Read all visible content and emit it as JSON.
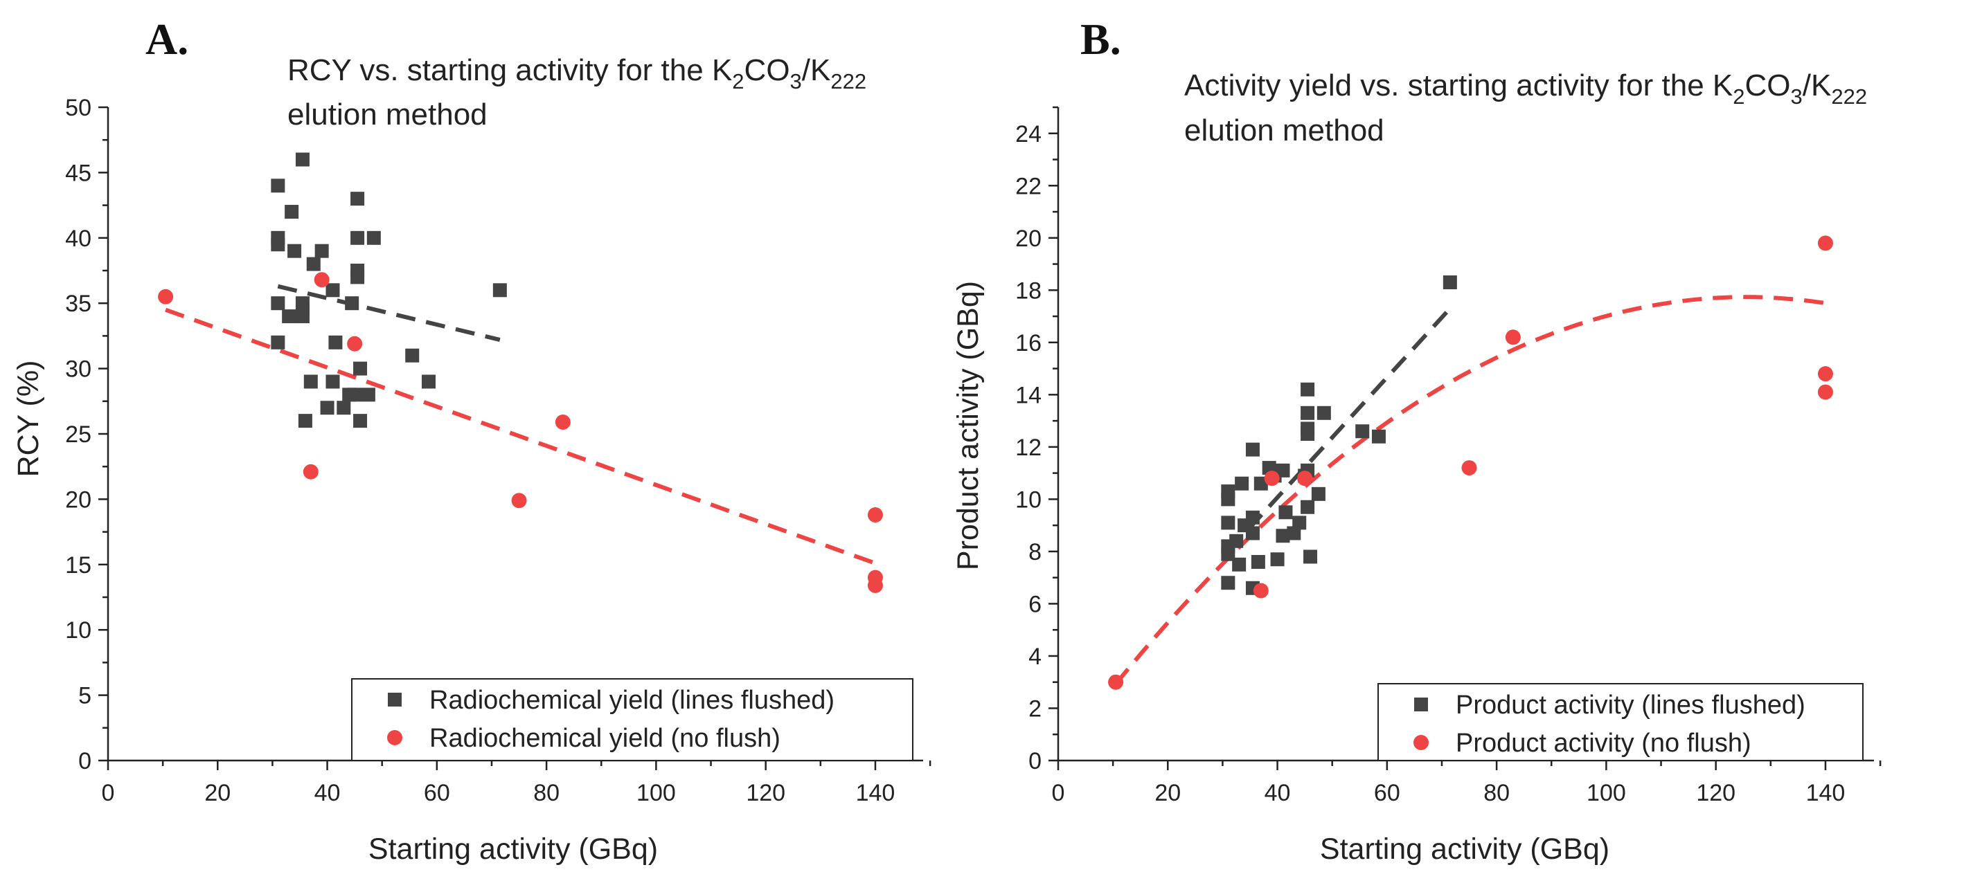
{
  "colors": {
    "flushed": "#444444",
    "noflush": "#ef4444",
    "axis": "#222222"
  },
  "chart_data": [
    {
      "panel_label": "A.",
      "type": "scatter",
      "title_parts": [
        {
          "t": "RCY vs. starting activity for the K",
          "line": 1
        },
        {
          "t": "2",
          "sub": true,
          "line": 1
        },
        {
          "t": "CO",
          "line": 1
        },
        {
          "t": "3",
          "sub": true,
          "line": 1
        },
        {
          "t": "/K",
          "line": 1
        },
        {
          "t": "222",
          "sub": true,
          "line": 1
        },
        {
          "t": "elution method",
          "line": 2
        }
      ],
      "xlabel": "Starting activity (GBq)",
      "ylabel": "RCY (%)",
      "xlim": [
        0,
        150
      ],
      "ylim": [
        0,
        50
      ],
      "xticks": [
        0,
        20,
        40,
        60,
        80,
        100,
        120,
        140
      ],
      "yticks": [
        0,
        5,
        10,
        15,
        20,
        25,
        30,
        35,
        40,
        45,
        50
      ],
      "legend_position": "bottom-right",
      "series": [
        {
          "name": "Radiochemical yield (lines flushed)",
          "marker": "square",
          "points": [
            [
              31,
              44
            ],
            [
              31,
              40
            ],
            [
              31,
              39.5
            ],
            [
              31,
              35
            ],
            [
              31,
              32
            ],
            [
              33,
              34
            ],
            [
              33.5,
              42
            ],
            [
              34,
              39
            ],
            [
              35.5,
              46
            ],
            [
              35.5,
              35
            ],
            [
              35.5,
              34.5
            ],
            [
              35.5,
              34
            ],
            [
              36,
              26
            ],
            [
              37,
              29
            ],
            [
              37.5,
              38
            ],
            [
              39,
              39
            ],
            [
              40,
              27
            ],
            [
              41,
              36
            ],
            [
              41,
              29
            ],
            [
              41.5,
              32
            ],
            [
              43,
              27
            ],
            [
              44,
              28
            ],
            [
              44.5,
              35
            ],
            [
              45,
              28
            ],
            [
              45.5,
              43
            ],
            [
              45.5,
              40
            ],
            [
              45.5,
              37.5
            ],
            [
              45.5,
              37
            ],
            [
              46,
              30
            ],
            [
              46,
              26
            ],
            [
              47.5,
              28
            ],
            [
              48.5,
              40
            ],
            [
              55.5,
              31
            ],
            [
              58.5,
              29
            ],
            [
              71.5,
              36
            ]
          ],
          "trend": {
            "kind": "linear",
            "x": [
              31,
              71.5
            ],
            "y": [
              36.3,
              32.2
            ]
          }
        },
        {
          "name": "Radiochemical yield (no flush)",
          "marker": "circle",
          "points": [
            [
              10.5,
              35.5
            ],
            [
              37,
              22.1
            ],
            [
              39,
              36.8
            ],
            [
              45,
              31.9
            ],
            [
              75,
              19.9
            ],
            [
              83,
              25.9
            ],
            [
              140,
              18.8
            ],
            [
              140,
              14
            ],
            [
              140,
              13.4
            ]
          ],
          "trend": {
            "kind": "linear",
            "x": [
              10.5,
              140
            ],
            "y": [
              34.5,
              15.1
            ]
          }
        }
      ]
    },
    {
      "panel_label": "B.",
      "type": "scatter",
      "title_parts": [
        {
          "t": "Activity yield vs. starting activity for the K",
          "line": 1
        },
        {
          "t": "2",
          "sub": true,
          "line": 1
        },
        {
          "t": "CO",
          "line": 1
        },
        {
          "t": "3",
          "sub": true,
          "line": 1
        },
        {
          "t": "/K",
          "line": 1
        },
        {
          "t": "222",
          "sub": true,
          "line": 1
        },
        {
          "t": "elution method",
          "line": 2
        }
      ],
      "xlabel": "Starting activity (GBq)",
      "ylabel": "Product activity (GBq)",
      "xlim": [
        0,
        150
      ],
      "ylim": [
        0,
        25
      ],
      "xticks": [
        0,
        20,
        40,
        60,
        80,
        100,
        120,
        140
      ],
      "yticks": [
        0,
        2,
        4,
        6,
        8,
        10,
        12,
        14,
        16,
        18,
        20,
        22,
        24
      ],
      "legend_position": "bottom-right",
      "series": [
        {
          "name": "Product activity (lines flushed)",
          "marker": "square",
          "points": [
            [
              31,
              10.3
            ],
            [
              31,
              10
            ],
            [
              31,
              9.1
            ],
            [
              31,
              8.2
            ],
            [
              31,
              7.9
            ],
            [
              31,
              6.8
            ],
            [
              32.5,
              8.4
            ],
            [
              33,
              7.5
            ],
            [
              33.5,
              10.6
            ],
            [
              34,
              9
            ],
            [
              35.5,
              11.9
            ],
            [
              35.5,
              9.3
            ],
            [
              35.5,
              8.7
            ],
            [
              35.5,
              6.6
            ],
            [
              36.5,
              7.6
            ],
            [
              37,
              10.6
            ],
            [
              38.5,
              11.2
            ],
            [
              39.5,
              10.9
            ],
            [
              40,
              7.7
            ],
            [
              41,
              11.1
            ],
            [
              41,
              8.6
            ],
            [
              41.5,
              9.5
            ],
            [
              43,
              8.7
            ],
            [
              44,
              9.1
            ],
            [
              45,
              10.9
            ],
            [
              45.5,
              14.2
            ],
            [
              45.5,
              13.3
            ],
            [
              45.5,
              12.7
            ],
            [
              45.5,
              12.5
            ],
            [
              45.5,
              9.7
            ],
            [
              45.5,
              11.1
            ],
            [
              46,
              7.8
            ],
            [
              47.5,
              10.2
            ],
            [
              48.5,
              13.3
            ],
            [
              55.5,
              12.6
            ],
            [
              58.5,
              12.4
            ],
            [
              71.5,
              18.3
            ]
          ],
          "trend": {
            "kind": "linear",
            "x": [
              31,
              71.5
            ],
            "y": [
              8.0,
              17.3
            ]
          }
        },
        {
          "name": "Product activity (no flush)",
          "marker": "circle",
          "points": [
            [
              10.5,
              3
            ],
            [
              37,
              6.5
            ],
            [
              39,
              10.8
            ],
            [
              45,
              10.8
            ],
            [
              75,
              11.2
            ],
            [
              83,
              16.2
            ],
            [
              140,
              19.8
            ],
            [
              140,
              14.8
            ],
            [
              140,
              14.1
            ]
          ],
          "trend": {
            "kind": "quadratic",
            "x": [
              10.5,
              140
            ],
            "coeffs": [
              -0.00112,
              0.2811,
              0.1
            ]
          }
        }
      ]
    }
  ]
}
